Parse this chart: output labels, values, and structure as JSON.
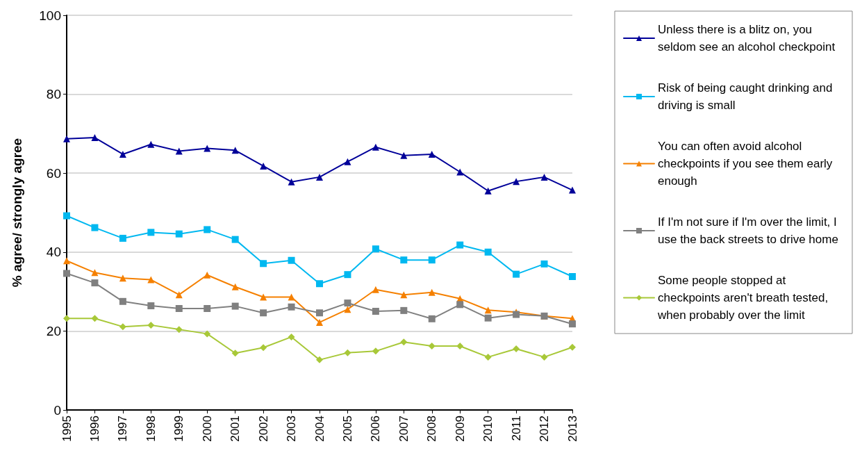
{
  "chart_data": {
    "type": "line",
    "ylabel": "% agree/ strongly agree",
    "categories": [
      "1995",
      "1996",
      "1997",
      "1998",
      "1999",
      "2000",
      "2001",
      "2002",
      "2003",
      "2004",
      "2005",
      "2006",
      "2007",
      "2008",
      "2009",
      "2010",
      "2011",
      "2012",
      "2013"
    ],
    "ylim": [
      0,
      100
    ],
    "yticks": [
      0,
      20,
      40,
      60,
      80,
      100
    ],
    "grid": "y",
    "legend": "right",
    "line_style": "solid",
    "series": [
      {
        "name": "Unless there is a blitz on, you seldom see an alcohol checkpoint",
        "color": "#000099",
        "marker": "triangle",
        "values": [
          68.7,
          69,
          64.8,
          67.3,
          65.6,
          66.3,
          65.8,
          61.8,
          57.8,
          59,
          62.9,
          66.6,
          64.5,
          64.8,
          60.3,
          55.5,
          57.9,
          59,
          55.7
        ]
      },
      {
        "name": "Risk of being caught drinking and driving is small",
        "color": "#00b8f0",
        "marker": "square",
        "values": [
          49.2,
          46.2,
          43.5,
          45,
          44.6,
          45.7,
          43.2,
          37.1,
          37.9,
          32,
          34.3,
          40.8,
          38,
          38,
          41.8,
          40,
          34.4,
          37,
          33.8
        ]
      },
      {
        "name": "You can often avoid alcohol checkpoints if you see them early enough",
        "color": "#f58000",
        "marker": "triangle",
        "values": [
          37.8,
          34.8,
          33.4,
          33,
          29.2,
          34.2,
          31.2,
          28.6,
          28.6,
          22.2,
          25.5,
          30.5,
          29.2,
          29.8,
          28.2,
          25.3,
          24.8,
          23.8,
          23.2
        ]
      },
      {
        "name": "If I'm not sure if I'm over the limit, I use the back streets to drive home",
        "color": "#808080",
        "marker": "square",
        "values": [
          34.6,
          32.2,
          27.5,
          26.4,
          25.7,
          25.7,
          26.3,
          24.6,
          26.1,
          24.6,
          27.1,
          25,
          25.2,
          23.1,
          26.7,
          23.3,
          24.2,
          23.8,
          21.8
        ]
      },
      {
        "name": "Some people stopped at checkpoints aren't breath tested, when probably over the limit",
        "color": "#a8c838",
        "marker": "diamond",
        "values": [
          23.2,
          23.2,
          21.1,
          21.5,
          20.4,
          19.3,
          14.4,
          15.8,
          18.5,
          12.7,
          14.5,
          14.9,
          17.2,
          16.2,
          16.2,
          13.4,
          15.5,
          13.4,
          15.9
        ]
      }
    ]
  }
}
